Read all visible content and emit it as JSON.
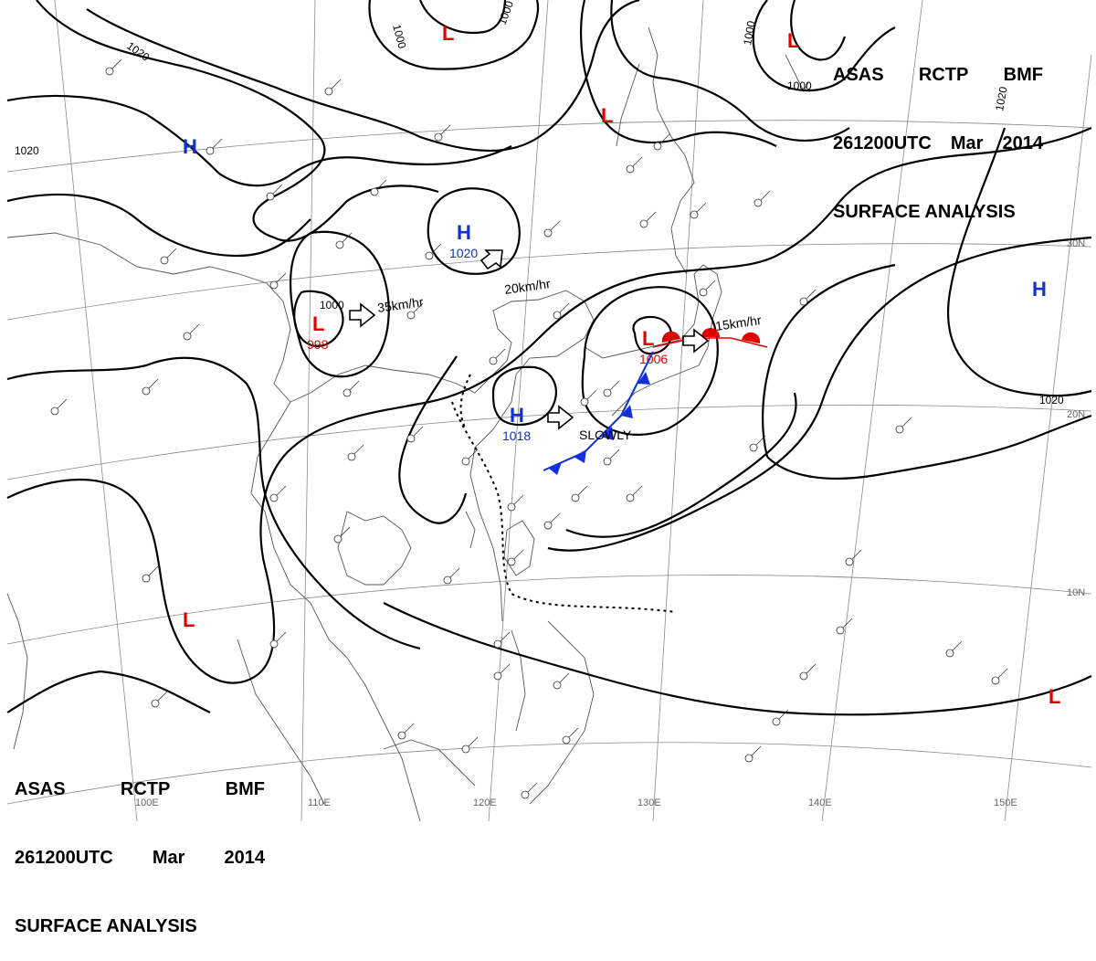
{
  "header": {
    "agency_line": [
      "ASAS",
      "RCTP",
      "BMF"
    ],
    "time_line": [
      "261200UTC",
      "Mar",
      "2014"
    ],
    "product": "SURFACE ANALYSIS"
  },
  "pressure_centers": [
    {
      "type": "H",
      "value": ""
    },
    {
      "type": "H",
      "value": "1020"
    },
    {
      "type": "H",
      "value": "1018"
    },
    {
      "type": "H",
      "value": ""
    },
    {
      "type": "L",
      "value": "998"
    },
    {
      "type": "L",
      "value": "1006"
    },
    {
      "type": "L",
      "value": ""
    },
    {
      "type": "L",
      "value": ""
    },
    {
      "type": "L",
      "value": ""
    },
    {
      "type": "L",
      "value": ""
    },
    {
      "type": "L",
      "value": ""
    }
  ],
  "isobar_labels": [
    "1020",
    "1000",
    "1000",
    "1000",
    "1000",
    "1020",
    "1020",
    "1000",
    "1020"
  ],
  "motions": [
    "35km/hr",
    "20km/hr",
    "SLOWLY",
    "15km/hr"
  ],
  "lon_labels": [
    "100E",
    "110E",
    "120E",
    "130E",
    "140E",
    "150E"
  ],
  "lat_labels": [
    "30N",
    "20N",
    "10N"
  ],
  "colors": {
    "high": "#1030d0",
    "low": "#e00000",
    "cold_front": "#1030e0",
    "warm_front": "#e00000",
    "isobar": "#000000",
    "coast": "#444444",
    "grid": "#888888"
  }
}
